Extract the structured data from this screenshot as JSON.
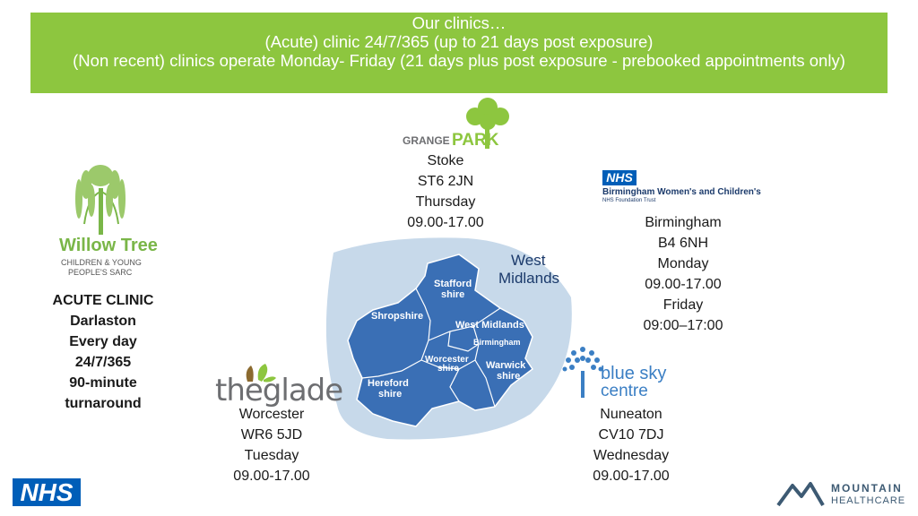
{
  "banner": {
    "line1": "Our clinics…",
    "line2": "(Acute) clinic 24/7/365 (up to 21 days post exposure)",
    "line3": "(Non recent) clinics operate Monday- Friday (21 days plus post exposure - prebooked appointments only)"
  },
  "logos": {
    "willow_tree": {
      "title": "Willow Tree",
      "sub1": "CHILDREN & YOUNG",
      "sub2": "PEOPLE'S SARC"
    },
    "grange_park": {
      "word1": "GRANGE",
      "word2": "PARK"
    },
    "birmingham": {
      "badge": "NHS",
      "name": "Birmingham Women's and Children's",
      "trust": "NHS Foundation Trust"
    },
    "glade": {
      "word": "theglade"
    },
    "blue_sky": {
      "word1": "blue sky",
      "word2": "centre"
    },
    "nhs": {
      "badge": "NHS"
    },
    "mountain": {
      "line1": "MOUNTAIN",
      "line2": "HEALTHCARE"
    }
  },
  "map": {
    "title1": "West",
    "title2": "Midlands",
    "regions": {
      "stafford1": "Stafford",
      "stafford2": "shire",
      "shropshire": "Shropshire",
      "west_midlands": "West Midlands",
      "birmingham": "Birmingham",
      "worcester1": "Worcester",
      "worcester2": "shire",
      "warwick1": "Warwick",
      "warwick2": "shire",
      "hereford1": "Hereford",
      "hereford2": "shire"
    },
    "colors": {
      "region_fill": "#3a6fb5",
      "halo_fill": "#c7d9ea",
      "border": "#ffffff"
    }
  },
  "clinics": {
    "acute": {
      "line1": "ACUTE CLINIC",
      "line2": "Darlaston",
      "line3": "Every day",
      "line4": "24/7/365",
      "line5": "90-minute",
      "line6": "turnaround"
    },
    "stoke": {
      "city": "Stoke",
      "postcode": "ST6 2JN",
      "day": "Thursday",
      "hours": "09.00-17.00"
    },
    "birmingham": {
      "city": "Birmingham",
      "postcode": "B4 6NH",
      "day1": "Monday",
      "hours1": "09.00-17.00",
      "day2": "Friday",
      "hours2": "09:00–17:00"
    },
    "worcester": {
      "city": "Worcester",
      "postcode": "WR6 5JD",
      "day": "Tuesday",
      "hours": "09.00-17.00"
    },
    "nuneaton": {
      "city": "Nuneaton",
      "postcode": "CV10 7DJ",
      "day": "Wednesday",
      "hours": "09.00-17.00"
    }
  },
  "colors": {
    "banner": "#8dc63f",
    "nhs_blue": "#005eb8",
    "willow_green": "#7ab648",
    "blue_sky": "#3b7fc4",
    "mountain": "#3d5a73"
  }
}
